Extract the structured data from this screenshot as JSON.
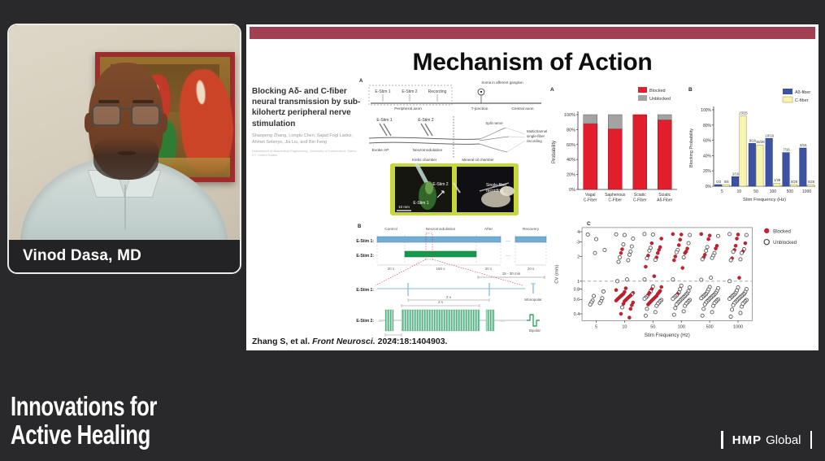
{
  "video": {
    "speaker_name": "Vinod Dasa, MD"
  },
  "branding": {
    "line1": "Innovations for",
    "line2": "Active Healing"
  },
  "footer_logo": {
    "bold": "HMP",
    "regular": "Global"
  },
  "slide": {
    "title": "Mechanism of Action",
    "top_bar_color": "#a23f52",
    "paper": {
      "title": "Blocking Aδ- and C-fiber neural transmission by sub-kilohertz peripheral nerve stimulation",
      "authors": "Shaopeng Zhang, Longtu Chen, Sajad Fogl Ladez, Ahmet Selenye, Jia Liu, and Bin Feng",
      "affiliation": "Department of Biomedical Engineering, University of Connecticut, Storrs, CT, United States"
    },
    "citation": {
      "prefix": "Zhang S, et al. ",
      "journal": "Front Neurosci.",
      "suffix": " 2024:18:1404903."
    },
    "figure_methods": {
      "labels": {
        "panel": "A",
        "estim1_top": "E-Stim 1",
        "estim2_top": "E-Stim 2",
        "recording": "Recording",
        "soma": "Soma in afferent ganglion",
        "peripheral_axon": "Peripheral axon",
        "tjunction": "T-junction",
        "central_axon": "Central axon",
        "estim1_mid": "E-Stim 1",
        "estim2_mid": "E-Stim 2",
        "evoke_ap": "Evoke AP",
        "neuromodulation": "Neuromodulation",
        "split_nerve": "Split nerve",
        "multichannel_1": "Multichannel",
        "multichannel_2": "single-fiber",
        "multichannel_3": "recording",
        "krebs": "Krebs chamber",
        "mineral_oil": "Mineral oil chamber",
        "photo_estim2": "E-Stim 2",
        "photo_estim1": "E-Stim 1",
        "photo_rec_1": "Single-fiber",
        "photo_rec_2": "recording",
        "scale": "10 mm"
      }
    },
    "figure_timeline": {
      "labels": {
        "panel": "B",
        "phase_control": "Control",
        "phase_neuro": "Neuromodulation",
        "phase_after": "After",
        "phase_recovery": "Recovery",
        "row1": "E-Stim 1:",
        "row2": "E-Stim 2:",
        "d1": "20 s",
        "d2": "180 s",
        "d3": "20 s",
        "d4": "20 s",
        "range": "15 - 30 min",
        "zoom_row1": "E-Stim 1:",
        "zoom_row2": "E-Stim 2:",
        "t2s_a": "2 s",
        "t2s_b": "2 s",
        "t05": "0.5 s",
        "monopolar": "Monopolar",
        "bipolar": "Bipolar",
        "ell1": "···",
        "ell2": "···",
        "ell3": "···",
        "ell4": "···"
      }
    }
  },
  "chart_data": [
    {
      "type": "bar",
      "panel": "A",
      "stacked": true,
      "categories": [
        [
          "Vagal",
          "C-Fiber"
        ],
        [
          "Saphenous",
          "C-Fiber"
        ],
        [
          "Sciatic",
          "C-Fiber"
        ],
        [
          "Sciatic",
          "Aδ-Fiber"
        ]
      ],
      "series": [
        {
          "name": "Blocked",
          "color": "#e21d2c",
          "values": [
            88,
            81,
            100,
            93
          ]
        },
        {
          "name": "Unblocked",
          "color": "#a3a3a3",
          "values": [
            12,
            19,
            0,
            7
          ]
        }
      ],
      "ylabel": "Probability",
      "yticks": [
        "0%",
        "20%",
        "40%",
        "60%",
        "80%",
        "100%"
      ],
      "ylim": [
        0,
        100
      ],
      "legend_position": "top-right"
    },
    {
      "type": "bar",
      "panel": "B",
      "grouped": true,
      "categories": [
        "5",
        "10",
        "50",
        "100",
        "500",
        "1000"
      ],
      "series": [
        {
          "name": "Aδ-fiber",
          "color": "#3d52a4",
          "values": [
            2,
            12.5,
            56,
            62.5,
            44,
            50
          ],
          "labels": [
            "0/3",
            "2/16",
            "9/16",
            "10/16",
            "7/16",
            "8/16"
          ]
        },
        {
          "name": "C-fiber",
          "color": "#f7f3b0",
          "values": [
            2,
            92,
            54,
            4,
            2,
            2
          ],
          "labels": [
            "0/8",
            "23/25",
            "15/28",
            "1/28",
            "0/28",
            "0/28"
          ]
        }
      ],
      "xlabel": "Stim Frequency (Hz)",
      "ylabel": "Blocking Probability",
      "yticks": [
        "0%",
        "20%",
        "40%",
        "60%",
        "80%",
        "100%"
      ],
      "ylim": [
        0,
        100
      ]
    },
    {
      "type": "scatter",
      "panel": "C",
      "x_categories": [
        "5",
        "10",
        "50",
        "100",
        "500",
        "1000"
      ],
      "xlabel": "Stim Frequency (Hz)",
      "ylabel": "CV (m/s)",
      "yscale": "log",
      "ylim": [
        0.33,
        4.5
      ],
      "yticks": [
        0.4,
        0.6,
        0.8,
        1,
        2,
        3,
        4
      ],
      "dashed_line_y": 1,
      "legend": [
        {
          "name": "Blocked",
          "fill": "#c8202f"
        },
        {
          "name": "Unblocked",
          "fill": "open"
        }
      ],
      "points": {
        "5": [
          [
            3.7,
            0
          ],
          [
            3.25,
            0
          ],
          [
            2.4,
            0
          ],
          [
            2.2,
            0
          ],
          [
            0.75,
            0
          ],
          [
            0.66,
            0
          ],
          [
            0.62,
            0
          ],
          [
            0.58,
            0
          ],
          [
            0.57,
            0
          ],
          [
            0.55,
            0
          ],
          [
            0.54,
            0
          ],
          [
            0.52,
            0
          ]
        ],
        "10": [
          [
            3.72,
            0
          ],
          [
            3.65,
            0
          ],
          [
            3.3,
            0
          ],
          [
            2.8,
            0
          ],
          [
            2.65,
            0
          ],
          [
            2.45,
            1
          ],
          [
            2.3,
            0
          ],
          [
            2.2,
            1
          ],
          [
            2.1,
            0
          ],
          [
            1.95,
            0
          ],
          [
            1.8,
            0
          ],
          [
            1.72,
            0
          ],
          [
            1.05,
            0
          ],
          [
            1.0,
            0
          ],
          [
            0.82,
            1
          ],
          [
            0.78,
            1
          ],
          [
            0.74,
            1
          ],
          [
            0.72,
            1
          ],
          [
            0.7,
            1
          ],
          [
            0.69,
            0
          ],
          [
            0.68,
            1
          ],
          [
            0.67,
            1
          ],
          [
            0.66,
            1
          ],
          [
            0.65,
            1
          ],
          [
            0.64,
            1
          ],
          [
            0.63,
            1
          ],
          [
            0.62,
            1
          ],
          [
            0.61,
            1
          ],
          [
            0.6,
            1
          ],
          [
            0.59,
            1
          ],
          [
            0.58,
            1
          ],
          [
            0.57,
            1
          ],
          [
            0.55,
            1
          ],
          [
            0.53,
            1
          ],
          [
            0.51,
            1
          ],
          [
            0.48,
            0
          ],
          [
            0.46,
            1
          ],
          [
            0.4,
            1
          ],
          [
            0.36,
            1
          ]
        ],
        "50": [
          [
            3.75,
            0
          ],
          [
            3.7,
            0
          ],
          [
            3.3,
            1
          ],
          [
            2.9,
            1
          ],
          [
            2.6,
            1
          ],
          [
            2.55,
            0
          ],
          [
            2.4,
            1
          ],
          [
            2.35,
            0
          ],
          [
            2.2,
            1
          ],
          [
            2.05,
            1
          ],
          [
            1.95,
            1
          ],
          [
            1.9,
            0
          ],
          [
            1.82,
            0
          ],
          [
            1.5,
            1
          ],
          [
            1.15,
            1
          ],
          [
            1.05,
            0
          ],
          [
            0.86,
            0
          ],
          [
            0.85,
            1
          ],
          [
            0.8,
            1
          ],
          [
            0.76,
            1
          ],
          [
            0.75,
            0
          ],
          [
            0.73,
            1
          ],
          [
            0.72,
            1
          ],
          [
            0.7,
            1
          ],
          [
            0.68,
            1
          ],
          [
            0.66,
            1
          ],
          [
            0.65,
            0
          ],
          [
            0.64,
            1
          ],
          [
            0.63,
            0
          ],
          [
            0.62,
            1
          ],
          [
            0.61,
            0
          ],
          [
            0.6,
            1
          ],
          [
            0.59,
            0
          ],
          [
            0.58,
            1
          ],
          [
            0.57,
            0
          ],
          [
            0.56,
            1
          ],
          [
            0.55,
            0
          ],
          [
            0.54,
            1
          ],
          [
            0.53,
            0
          ],
          [
            0.52,
            1
          ],
          [
            0.5,
            0
          ],
          [
            0.46,
            0
          ],
          [
            0.42,
            0
          ],
          [
            0.38,
            0
          ]
        ],
        "100": [
          [
            3.75,
            1
          ],
          [
            3.7,
            1
          ],
          [
            3.65,
            0
          ],
          [
            3.2,
            1
          ],
          [
            2.9,
            0
          ],
          [
            2.75,
            1
          ],
          [
            2.5,
            1
          ],
          [
            2.4,
            0
          ],
          [
            2.3,
            1
          ],
          [
            2.25,
            0
          ],
          [
            2.2,
            1
          ],
          [
            2.0,
            1
          ],
          [
            1.95,
            0
          ],
          [
            1.8,
            1
          ],
          [
            1.45,
            1
          ],
          [
            1.05,
            0
          ],
          [
            0.88,
            0
          ],
          [
            0.84,
            0
          ],
          [
            0.8,
            0
          ],
          [
            0.76,
            0
          ],
          [
            0.73,
            0
          ],
          [
            0.71,
            0
          ],
          [
            0.7,
            1
          ],
          [
            0.69,
            0
          ],
          [
            0.67,
            0
          ],
          [
            0.66,
            0
          ],
          [
            0.65,
            0
          ],
          [
            0.64,
            0
          ],
          [
            0.63,
            0
          ],
          [
            0.62,
            0
          ],
          [
            0.61,
            0
          ],
          [
            0.6,
            0
          ],
          [
            0.59,
            0
          ],
          [
            0.58,
            0
          ],
          [
            0.57,
            0
          ],
          [
            0.56,
            0
          ],
          [
            0.55,
            0
          ],
          [
            0.54,
            0
          ],
          [
            0.53,
            0
          ],
          [
            0.52,
            0
          ],
          [
            0.5,
            0
          ],
          [
            0.47,
            0
          ],
          [
            0.43,
            0
          ],
          [
            0.39,
            0
          ]
        ],
        "500": [
          [
            3.75,
            1
          ],
          [
            3.6,
            1
          ],
          [
            3.55,
            0
          ],
          [
            3.25,
            1
          ],
          [
            2.7,
            1
          ],
          [
            2.6,
            0
          ],
          [
            2.5,
            1
          ],
          [
            2.35,
            0
          ],
          [
            2.2,
            0
          ],
          [
            2.1,
            1
          ],
          [
            2.05,
            0
          ],
          [
            1.95,
            1
          ],
          [
            1.92,
            0
          ],
          [
            1.85,
            0
          ],
          [
            1.1,
            0
          ],
          [
            1.04,
            0
          ],
          [
            0.85,
            0
          ],
          [
            0.82,
            0
          ],
          [
            0.79,
            0
          ],
          [
            0.76,
            0
          ],
          [
            0.74,
            0
          ],
          [
            0.72,
            0
          ],
          [
            0.7,
            0
          ],
          [
            0.69,
            0
          ],
          [
            0.68,
            0
          ],
          [
            0.67,
            0
          ],
          [
            0.66,
            0
          ],
          [
            0.65,
            0
          ],
          [
            0.64,
            0
          ],
          [
            0.63,
            0
          ],
          [
            0.62,
            0
          ],
          [
            0.61,
            0
          ],
          [
            0.6,
            0
          ],
          [
            0.59,
            0
          ],
          [
            0.58,
            0
          ],
          [
            0.57,
            0
          ],
          [
            0.56,
            0
          ],
          [
            0.55,
            0
          ],
          [
            0.54,
            0
          ],
          [
            0.52,
            0
          ],
          [
            0.5,
            0
          ],
          [
            0.46,
            0
          ],
          [
            0.42,
            0
          ],
          [
            0.38,
            0
          ]
        ],
        "1000": [
          [
            3.75,
            0
          ],
          [
            3.7,
            1
          ],
          [
            3.65,
            0
          ],
          [
            3.3,
            1
          ],
          [
            2.9,
            1
          ],
          [
            2.7,
            1
          ],
          [
            2.45,
            0
          ],
          [
            2.4,
            1
          ],
          [
            2.3,
            1
          ],
          [
            2.28,
            0
          ],
          [
            2.2,
            0
          ],
          [
            1.9,
            1
          ],
          [
            1.85,
            0
          ],
          [
            1.8,
            0
          ],
          [
            1.1,
            1
          ],
          [
            1.0,
            0
          ],
          [
            0.84,
            0
          ],
          [
            0.8,
            0
          ],
          [
            0.77,
            0
          ],
          [
            0.74,
            0
          ],
          [
            0.72,
            0
          ],
          [
            0.7,
            0
          ],
          [
            0.69,
            0
          ],
          [
            0.68,
            0
          ],
          [
            0.67,
            0
          ],
          [
            0.66,
            0
          ],
          [
            0.65,
            0
          ],
          [
            0.64,
            0
          ],
          [
            0.63,
            0
          ],
          [
            0.62,
            0
          ],
          [
            0.61,
            0
          ],
          [
            0.6,
            0
          ],
          [
            0.59,
            0
          ],
          [
            0.58,
            0
          ],
          [
            0.57,
            0
          ],
          [
            0.56,
            0
          ],
          [
            0.55,
            0
          ],
          [
            0.54,
            0
          ],
          [
            0.53,
            0
          ],
          [
            0.51,
            0
          ],
          [
            0.49,
            0
          ],
          [
            0.45,
            0
          ],
          [
            0.41,
            0
          ],
          [
            0.37,
            0
          ]
        ]
      }
    }
  ]
}
